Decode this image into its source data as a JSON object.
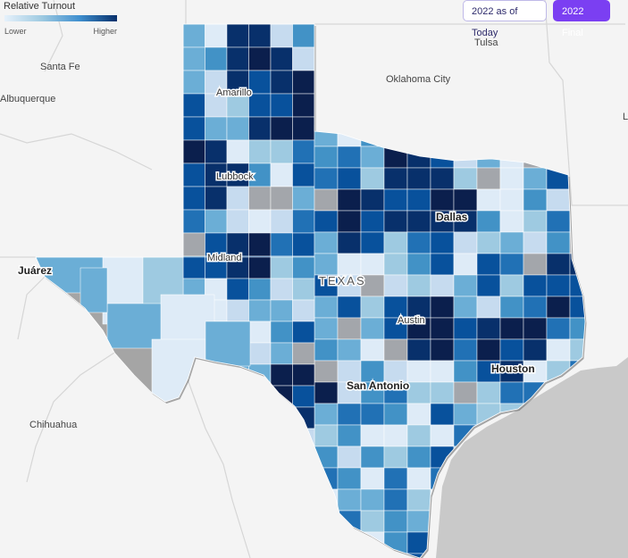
{
  "legend": {
    "title": "Relative Turnout",
    "low_label": "Lower",
    "high_label": "Higher",
    "colors": [
      "#e6f1fb",
      "#9ecae1",
      "#3f8fcf",
      "#08306b"
    ]
  },
  "toggles": {
    "today_label": "2022 as of Today",
    "final_label": "2022 Final",
    "active": "2022 Final",
    "active_color": "#7b3ff2"
  },
  "state_label": "TEXAS",
  "cities": {
    "tulsa": "Tulsa",
    "santa_fe": "Santa Fe",
    "oklahoma_city": "Oklahoma City",
    "albuquerque": "Albuquerque",
    "amarillo": "Amarillo",
    "lubbock": "Lubbock",
    "dallas": "Dallas",
    "midland": "Midland",
    "juarez": "Juárez",
    "austin": "Austin",
    "houston": "Houston",
    "san_antonio": "San Antonio",
    "chihuahua": "Chihuahua",
    "edge_letter": "L"
  },
  "map_colors": {
    "water": "#c9c9c9",
    "land": "#f4f4f4",
    "no_data": "#a3a6ab",
    "shades": [
      "#deebf7",
      "#c6dbef",
      "#9ecae1",
      "#6baed6",
      "#4292c6",
      "#2171b5",
      "#08519c",
      "#08306b",
      "#0b1f4d"
    ]
  }
}
